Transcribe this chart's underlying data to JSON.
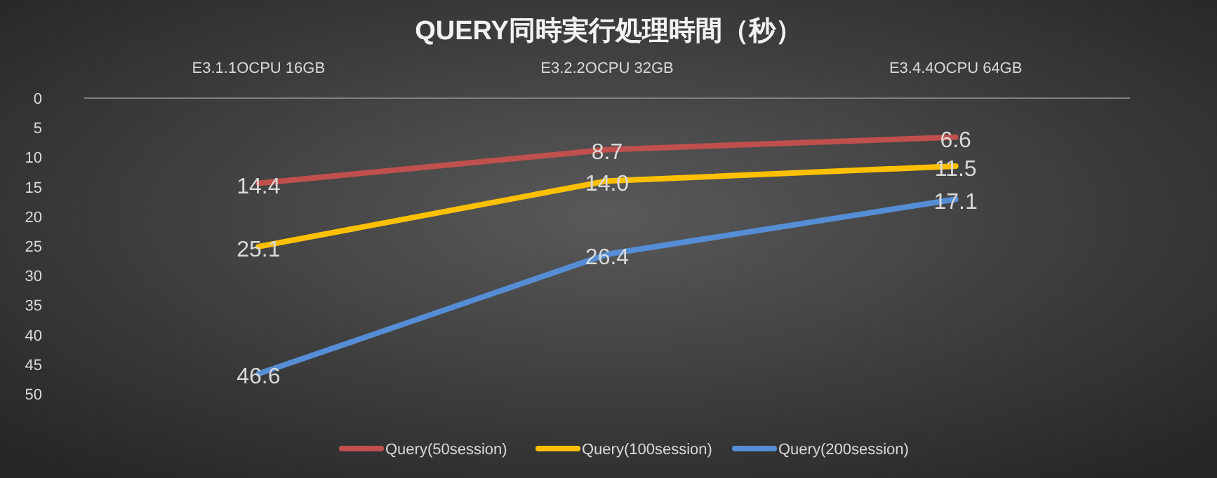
{
  "chart_data": {
    "type": "line",
    "title": "QUERY同時実行処理時間（秒）",
    "categories": [
      "E3.1.1OCPU 16GB",
      "E3.2.2OCPU 32GB",
      "E3.4.4OCPU 64GB"
    ],
    "series": [
      {
        "name": "Query(50session)",
        "color": "#c0504d",
        "values": [
          14.4,
          8.7,
          6.6
        ],
        "value_labels": [
          "14.4",
          "8.7",
          "6.6"
        ]
      },
      {
        "name": "Query(100session)",
        "color": "#ffc000",
        "values": [
          25.1,
          14.0,
          11.5
        ],
        "value_labels": [
          "25.1",
          "14.0",
          "11.5"
        ]
      },
      {
        "name": "Query(200session)",
        "color": "#558ed5",
        "values": [
          46.6,
          26.4,
          17.1
        ],
        "value_labels": [
          "46.6",
          "26.4",
          "17.1"
        ]
      }
    ],
    "ylim": [
      50,
      0
    ],
    "yticks": [
      0,
      5,
      10,
      15,
      20,
      25,
      30,
      35,
      40,
      45,
      50
    ],
    "legend": "bottom",
    "grid": false,
    "marker": "none",
    "line_style": "solid"
  }
}
